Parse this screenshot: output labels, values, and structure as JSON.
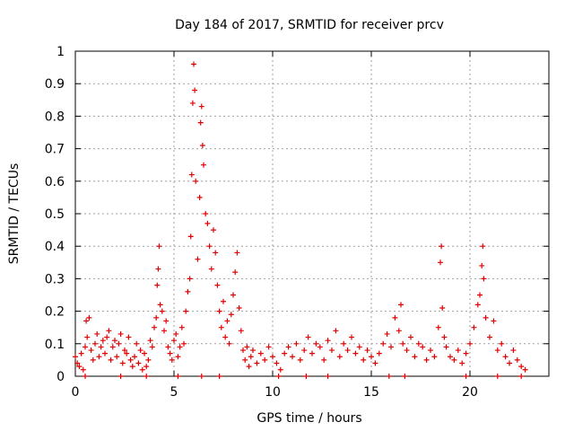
{
  "chart_data": {
    "type": "scatter",
    "title": "Day 184 of 2017, SRMTID for receiver prcv",
    "xlabel": "GPS time / hours",
    "ylabel": "SRMTID / TECUs",
    "xlim": [
      0,
      24
    ],
    "ylim": [
      0,
      1
    ],
    "xticks": [
      0,
      5,
      10,
      15,
      20
    ],
    "xtick_labels": [
      "0",
      "5",
      "10",
      "15",
      "20"
    ],
    "yticks": [
      0,
      0.1,
      0.2,
      0.3,
      0.4,
      0.5,
      0.6,
      0.7,
      0.8,
      0.9,
      1
    ],
    "ytick_labels": [
      "0",
      "0.1",
      "0.2",
      "0.3",
      "0.4",
      "0.5",
      "0.6",
      "0.7",
      "0.8",
      "0.9",
      "1"
    ],
    "grid": true,
    "marker": "+",
    "series": [
      {
        "name": "SRMTID",
        "color": "#e00000",
        "points": [
          [
            0.0,
            0.06
          ],
          [
            0.1,
            0.04
          ],
          [
            0.2,
            0.03
          ],
          [
            0.3,
            0.07
          ],
          [
            0.4,
            0.02
          ],
          [
            0.5,
            0.09
          ],
          [
            0.55,
            0.17
          ],
          [
            0.6,
            0.12
          ],
          [
            0.7,
            0.18
          ],
          [
            0.8,
            0.08
          ],
          [
            0.9,
            0.05
          ],
          [
            1.0,
            0.1
          ],
          [
            1.1,
            0.13
          ],
          [
            1.2,
            0.06
          ],
          [
            1.3,
            0.09
          ],
          [
            1.4,
            0.11
          ],
          [
            1.5,
            0.07
          ],
          [
            1.6,
            0.12
          ],
          [
            1.7,
            0.14
          ],
          [
            1.8,
            0.05
          ],
          [
            1.9,
            0.09
          ],
          [
            2.0,
            0.11
          ],
          [
            2.1,
            0.06
          ],
          [
            2.2,
            0.1
          ],
          [
            2.3,
            0.13
          ],
          [
            2.4,
            0.04
          ],
          [
            2.5,
            0.08
          ],
          [
            2.6,
            0.07
          ],
          [
            2.7,
            0.12
          ],
          [
            2.8,
            0.05
          ],
          [
            2.9,
            0.03
          ],
          [
            3.0,
            0.06
          ],
          [
            3.1,
            0.1
          ],
          [
            3.2,
            0.04
          ],
          [
            3.3,
            0.08
          ],
          [
            3.4,
            0.02
          ],
          [
            3.5,
            0.07
          ],
          [
            3.6,
            0.03
          ],
          [
            3.7,
            0.05
          ],
          [
            3.8,
            0.11
          ],
          [
            3.9,
            0.09
          ],
          [
            4.0,
            0.15
          ],
          [
            4.1,
            0.18
          ],
          [
            4.15,
            0.28
          ],
          [
            4.2,
            0.33
          ],
          [
            4.25,
            0.4
          ],
          [
            4.3,
            0.22
          ],
          [
            4.4,
            0.2
          ],
          [
            4.5,
            0.14
          ],
          [
            4.6,
            0.17
          ],
          [
            4.7,
            0.09
          ],
          [
            4.8,
            0.07
          ],
          [
            4.9,
            0.05
          ],
          [
            5.0,
            0.11
          ],
          [
            5.1,
            0.13
          ],
          [
            5.2,
            0.06
          ],
          [
            5.3,
            0.09
          ],
          [
            5.4,
            0.15
          ],
          [
            5.5,
            0.1
          ],
          [
            5.6,
            0.2
          ],
          [
            5.7,
            0.26
          ],
          [
            5.8,
            0.3
          ],
          [
            5.85,
            0.43
          ],
          [
            5.9,
            0.62
          ],
          [
            5.95,
            0.84
          ],
          [
            6.0,
            0.96
          ],
          [
            6.05,
            0.88
          ],
          [
            6.1,
            0.6
          ],
          [
            6.2,
            0.36
          ],
          [
            6.3,
            0.55
          ],
          [
            6.35,
            0.78
          ],
          [
            6.4,
            0.83
          ],
          [
            6.45,
            0.71
          ],
          [
            6.5,
            0.65
          ],
          [
            6.6,
            0.5
          ],
          [
            6.7,
            0.47
          ],
          [
            6.8,
            0.4
          ],
          [
            6.9,
            0.33
          ],
          [
            7.0,
            0.45
          ],
          [
            7.1,
            0.38
          ],
          [
            7.2,
            0.28
          ],
          [
            7.3,
            0.2
          ],
          [
            7.4,
            0.15
          ],
          [
            7.5,
            0.23
          ],
          [
            7.6,
            0.12
          ],
          [
            7.7,
            0.17
          ],
          [
            7.8,
            0.1
          ],
          [
            7.9,
            0.19
          ],
          [
            8.0,
            0.25
          ],
          [
            8.1,
            0.32
          ],
          [
            8.2,
            0.38
          ],
          [
            8.3,
            0.21
          ],
          [
            8.4,
            0.14
          ],
          [
            8.5,
            0.08
          ],
          [
            8.6,
            0.05
          ],
          [
            8.7,
            0.09
          ],
          [
            8.8,
            0.03
          ],
          [
            8.9,
            0.06
          ],
          [
            9.0,
            0.08
          ],
          [
            9.2,
            0.04
          ],
          [
            9.4,
            0.07
          ],
          [
            9.6,
            0.05
          ],
          [
            9.8,
            0.09
          ],
          [
            10.0,
            0.06
          ],
          [
            10.2,
            0.04
          ],
          [
            10.4,
            0.02
          ],
          [
            10.6,
            0.07
          ],
          [
            10.8,
            0.09
          ],
          [
            11.0,
            0.06
          ],
          [
            11.2,
            0.1
          ],
          [
            11.4,
            0.05
          ],
          [
            11.6,
            0.08
          ],
          [
            11.8,
            0.12
          ],
          [
            12.0,
            0.07
          ],
          [
            12.2,
            0.1
          ],
          [
            12.4,
            0.09
          ],
          [
            12.6,
            0.05
          ],
          [
            12.8,
            0.11
          ],
          [
            13.0,
            0.08
          ],
          [
            13.2,
            0.14
          ],
          [
            13.4,
            0.06
          ],
          [
            13.6,
            0.1
          ],
          [
            13.8,
            0.08
          ],
          [
            14.0,
            0.12
          ],
          [
            14.2,
            0.07
          ],
          [
            14.4,
            0.09
          ],
          [
            14.6,
            0.05
          ],
          [
            14.8,
            0.08
          ],
          [
            15.0,
            0.06
          ],
          [
            15.2,
            0.04
          ],
          [
            15.4,
            0.07
          ],
          [
            15.6,
            0.1
          ],
          [
            15.8,
            0.13
          ],
          [
            16.0,
            0.09
          ],
          [
            16.2,
            0.18
          ],
          [
            16.4,
            0.14
          ],
          [
            16.5,
            0.22
          ],
          [
            16.6,
            0.1
          ],
          [
            16.8,
            0.08
          ],
          [
            17.0,
            0.12
          ],
          [
            17.2,
            0.06
          ],
          [
            17.4,
            0.1
          ],
          [
            17.6,
            0.09
          ],
          [
            17.8,
            0.05
          ],
          [
            18.0,
            0.08
          ],
          [
            18.2,
            0.06
          ],
          [
            18.4,
            0.15
          ],
          [
            18.5,
            0.35
          ],
          [
            18.55,
            0.4
          ],
          [
            18.6,
            0.21
          ],
          [
            18.7,
            0.12
          ],
          [
            18.8,
            0.09
          ],
          [
            19.0,
            0.06
          ],
          [
            19.2,
            0.05
          ],
          [
            19.4,
            0.08
          ],
          [
            19.6,
            0.04
          ],
          [
            19.8,
            0.07
          ],
          [
            20.0,
            0.1
          ],
          [
            20.2,
            0.15
          ],
          [
            20.4,
            0.22
          ],
          [
            20.5,
            0.25
          ],
          [
            20.6,
            0.34
          ],
          [
            20.65,
            0.4
          ],
          [
            20.7,
            0.3
          ],
          [
            20.8,
            0.18
          ],
          [
            21.0,
            0.12
          ],
          [
            21.2,
            0.17
          ],
          [
            21.4,
            0.08
          ],
          [
            21.6,
            0.1
          ],
          [
            21.8,
            0.06
          ],
          [
            22.0,
            0.04
          ],
          [
            22.2,
            0.08
          ],
          [
            22.4,
            0.05
          ],
          [
            22.6,
            0.03
          ],
          [
            22.8,
            0.02
          ],
          [
            0.5,
            0.0
          ],
          [
            2.3,
            0.0
          ],
          [
            3.6,
            0.0
          ],
          [
            5.2,
            0.0
          ],
          [
            6.4,
            0.0
          ],
          [
            7.3,
            0.0
          ],
          [
            10.3,
            0.0
          ],
          [
            11.7,
            0.0
          ],
          [
            12.8,
            0.0
          ],
          [
            15.9,
            0.0
          ],
          [
            16.7,
            0.0
          ],
          [
            19.8,
            0.0
          ],
          [
            21.4,
            0.0
          ],
          [
            22.6,
            0.0
          ]
        ]
      }
    ]
  }
}
